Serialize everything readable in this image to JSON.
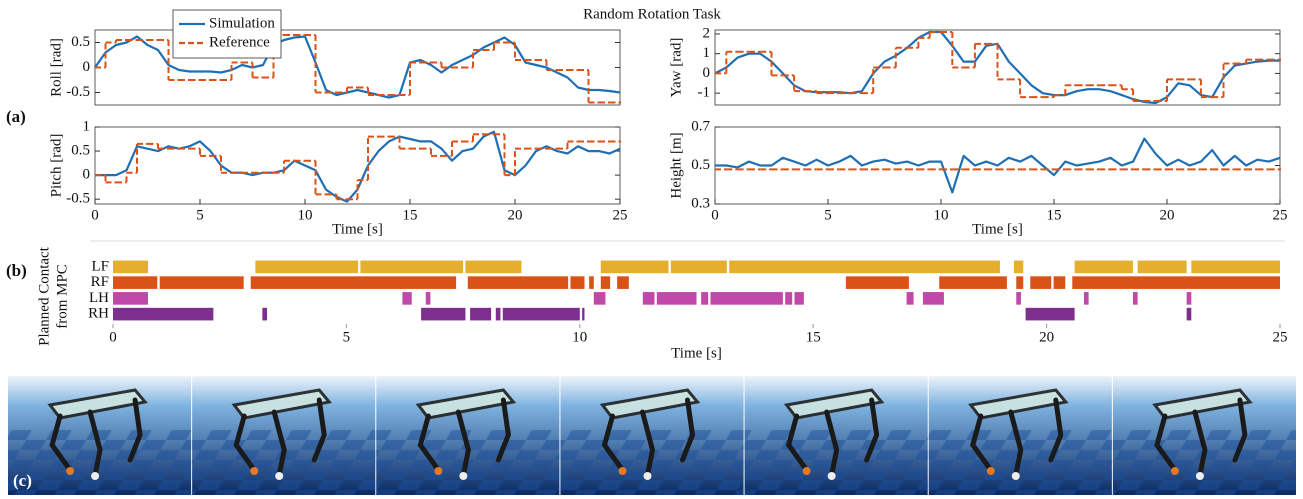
{
  "title": "Random Rotation Task",
  "panel_labels": [
    "(a)",
    "(b)",
    "(c)"
  ],
  "chart_data": [
    {
      "type": "line",
      "ylabel": "Roll [rad]",
      "xlim": [
        0,
        25
      ],
      "ylim": [
        -0.75,
        0.75
      ],
      "yticks": [
        -0.5,
        0,
        0.5
      ],
      "legend": "upper left",
      "x": [
        0,
        0.5,
        1,
        1.5,
        2,
        2.5,
        3,
        3.5,
        4,
        4.5,
        5,
        5.5,
        6,
        6.5,
        7,
        7.5,
        8,
        8.5,
        9,
        9.5,
        10,
        10.5,
        11,
        11.5,
        12,
        12.5,
        13,
        13.5,
        14,
        14.5,
        15,
        15.5,
        16,
        16.5,
        17,
        17.5,
        18,
        18.5,
        19,
        19.5,
        20,
        20.5,
        21,
        21.5,
        22,
        22.5,
        23,
        23.5,
        24,
        24.5,
        25
      ],
      "series": [
        {
          "name": "Simulation",
          "color": "#1f6fb5",
          "drawstyle": "line",
          "values": [
            0,
            0.3,
            0.45,
            0.5,
            0.62,
            0.45,
            0.35,
            0.05,
            -0.05,
            -0.08,
            -0.08,
            -0.08,
            -0.1,
            -0.05,
            0.05,
            0,
            0.05,
            0.45,
            0.55,
            0.6,
            0.62,
            0.1,
            -0.45,
            -0.55,
            -0.5,
            -0.45,
            -0.5,
            -0.55,
            -0.6,
            -0.55,
            0.1,
            0.15,
            0.05,
            -0.1,
            0.05,
            0.15,
            0.25,
            0.4,
            0.5,
            0.6,
            0.45,
            0.1,
            0.05,
            0,
            -0.1,
            -0.2,
            -0.4,
            -0.45,
            -0.45,
            -0.47,
            -0.5
          ]
        },
        {
          "name": "Reference",
          "color": "#d95319",
          "drawstyle": "steps-post",
          "values": [
            0,
            0.5,
            0.55,
            0.55,
            0.55,
            0.55,
            0.55,
            -0.25,
            -0.25,
            -0.25,
            -0.25,
            -0.25,
            -0.25,
            0.1,
            0.1,
            -0.2,
            -0.2,
            0.65,
            0.65,
            0.65,
            0.65,
            -0.5,
            -0.5,
            -0.5,
            -0.4,
            -0.4,
            -0.55,
            -0.55,
            -0.55,
            -0.55,
            0.1,
            0.1,
            0.1,
            0,
            0,
            0,
            0.35,
            0.35,
            0.5,
            0.5,
            0.15,
            0.15,
            0.15,
            -0.05,
            -0.05,
            -0.05,
            -0.05,
            -0.7,
            -0.7,
            -0.7,
            -0.7
          ]
        }
      ]
    },
    {
      "type": "line",
      "ylabel": "Yaw [rad]",
      "xlim": [
        0,
        25
      ],
      "ylim": [
        -1.6,
        2.2
      ],
      "yticks": [
        -1,
        0,
        1,
        2
      ],
      "x": [
        0,
        0.5,
        1,
        1.5,
        2,
        2.5,
        3,
        3.5,
        4,
        4.5,
        5,
        5.5,
        6,
        6.5,
        7,
        7.5,
        8,
        8.5,
        9,
        9.5,
        10,
        10.5,
        11,
        11.5,
        12,
        12.5,
        13,
        13.5,
        14,
        14.5,
        15,
        15.5,
        16,
        16.5,
        17,
        17.5,
        18,
        18.5,
        19,
        19.5,
        20,
        20.5,
        21,
        21.5,
        22,
        22.5,
        23,
        23.5,
        24,
        24.5,
        25
      ],
      "series": [
        {
          "color": "#1f6fb5",
          "drawstyle": "line",
          "values": [
            0,
            0.3,
            0.8,
            1.0,
            1.0,
            0.6,
            0,
            -0.6,
            -0.9,
            -0.95,
            -0.95,
            -0.95,
            -1.0,
            -0.9,
            0,
            0.6,
            0.9,
            1.3,
            1.8,
            2.1,
            2.1,
            1.4,
            0.6,
            0.6,
            1.4,
            1.5,
            0.6,
            0,
            -0.6,
            -1.0,
            -1.1,
            -1.1,
            -0.9,
            -0.8,
            -0.8,
            -0.9,
            -1.1,
            -1.3,
            -1.45,
            -1.5,
            -1.2,
            -0.5,
            -0.6,
            -1.1,
            -1.2,
            -0.2,
            0.4,
            0.5,
            0.6,
            0.65,
            0.65
          ]
        },
        {
          "color": "#d95319",
          "drawstyle": "steps-post",
          "values": [
            0,
            1.1,
            1.1,
            1.1,
            1.1,
            -0.1,
            -0.1,
            -0.9,
            -0.9,
            -1.0,
            -1.0,
            -1.0,
            -1.0,
            -1.0,
            0.3,
            0.3,
            1.3,
            1.3,
            1.8,
            2.1,
            2.1,
            0.3,
            0.3,
            1.5,
            1.5,
            -0.3,
            -0.3,
            -1.2,
            -1.2,
            -1.2,
            -1.1,
            -0.6,
            -0.6,
            -0.6,
            -0.6,
            -0.6,
            -0.8,
            -1.4,
            -1.4,
            -1.4,
            -0.3,
            -0.3,
            -0.3,
            -1.2,
            -1.2,
            0.5,
            0.5,
            0.7,
            0.7,
            0.7,
            0.7
          ]
        }
      ]
    },
    {
      "type": "line",
      "ylabel": "Pitch [rad]",
      "xlabel": "Time [s]",
      "xlim": [
        0,
        25
      ],
      "ylim": [
        -0.6,
        1
      ],
      "xticks": [
        0,
        5,
        10,
        15,
        20,
        25
      ],
      "yticks": [
        -0.5,
        0,
        0.5,
        1
      ],
      "x": [
        0,
        0.5,
        1,
        1.5,
        2,
        2.5,
        3,
        3.5,
        4,
        4.5,
        5,
        5.5,
        6,
        6.5,
        7,
        7.5,
        8,
        8.5,
        9,
        9.5,
        10,
        10.5,
        11,
        11.5,
        12,
        12.5,
        13,
        13.5,
        14,
        14.5,
        15,
        15.5,
        16,
        16.5,
        17,
        17.5,
        18,
        18.5,
        19,
        19.5,
        20,
        20.5,
        21,
        21.5,
        22,
        22.5,
        23,
        23.5,
        24,
        24.5,
        25
      ],
      "series": [
        {
          "color": "#1f6fb5",
          "drawstyle": "line",
          "values": [
            0,
            0,
            0,
            0.1,
            0.6,
            0.55,
            0.5,
            0.6,
            0.55,
            0.6,
            0.7,
            0.5,
            0.2,
            0.05,
            0.05,
            0,
            0.05,
            0.05,
            0.1,
            0.3,
            0.2,
            0.1,
            -0.3,
            -0.45,
            -0.55,
            -0.3,
            0.2,
            0.5,
            0.7,
            0.8,
            0.75,
            0.7,
            0.7,
            0.55,
            0.3,
            0.5,
            0.55,
            0.8,
            0.9,
            0.1,
            0,
            0.2,
            0.5,
            0.6,
            0.5,
            0.45,
            0.6,
            0.5,
            0.5,
            0.45,
            0.55
          ]
        },
        {
          "color": "#d95319",
          "drawstyle": "steps-post",
          "values": [
            0,
            -0.15,
            -0.15,
            0.05,
            0.65,
            0.65,
            0.55,
            0.55,
            0.55,
            0.55,
            0.4,
            0.4,
            0.05,
            0.05,
            0.05,
            0.05,
            0.05,
            0.05,
            0.3,
            0.3,
            0.3,
            -0.4,
            -0.4,
            -0.5,
            -0.5,
            -0.1,
            0.8,
            0.8,
            0.8,
            0.55,
            0.55,
            0.55,
            0.4,
            0.4,
            0.7,
            0.7,
            0.85,
            0.85,
            0.85,
            0,
            0.55,
            0.55,
            0.55,
            0.55,
            0.55,
            0.7,
            0.7,
            0.7,
            0.7,
            0.7,
            0.7
          ]
        }
      ]
    },
    {
      "type": "line",
      "ylabel": "Height [m]",
      "xlabel": "Time [s]",
      "xlim": [
        0,
        25
      ],
      "ylim": [
        0.3,
        0.7
      ],
      "xticks": [
        0,
        5,
        10,
        15,
        20,
        25
      ],
      "yticks": [
        0.3,
        0.5,
        0.7
      ],
      "x": [
        0,
        0.5,
        1,
        1.5,
        2,
        2.5,
        3,
        3.5,
        4,
        4.5,
        5,
        5.5,
        6,
        6.5,
        7,
        7.5,
        8,
        8.5,
        9,
        9.5,
        10,
        10.5,
        11,
        11.5,
        12,
        12.5,
        13,
        13.5,
        14,
        14.5,
        15,
        15.5,
        16,
        16.5,
        17,
        17.5,
        18,
        18.5,
        19,
        19.5,
        20,
        20.5,
        21,
        21.5,
        22,
        22.5,
        23,
        23.5,
        24,
        24.5,
        25
      ],
      "series": [
        {
          "color": "#1f6fb5",
          "drawstyle": "line",
          "values": [
            0.5,
            0.5,
            0.49,
            0.52,
            0.5,
            0.5,
            0.54,
            0.52,
            0.5,
            0.53,
            0.5,
            0.52,
            0.55,
            0.5,
            0.52,
            0.53,
            0.51,
            0.52,
            0.5,
            0.52,
            0.52,
            0.36,
            0.55,
            0.5,
            0.52,
            0.5,
            0.54,
            0.52,
            0.55,
            0.5,
            0.45,
            0.52,
            0.5,
            0.51,
            0.52,
            0.54,
            0.5,
            0.52,
            0.64,
            0.56,
            0.5,
            0.53,
            0.5,
            0.52,
            0.58,
            0.5,
            0.55,
            0.5,
            0.53,
            0.52,
            0.54
          ]
        },
        {
          "color": "#d95319",
          "drawstyle": "steps-post",
          "values": [
            0.48,
            0.48,
            0.48,
            0.48,
            0.48,
            0.48,
            0.48,
            0.48,
            0.48,
            0.48,
            0.48,
            0.48,
            0.48,
            0.48,
            0.48,
            0.48,
            0.48,
            0.48,
            0.48,
            0.48,
            0.48,
            0.48,
            0.48,
            0.48,
            0.48,
            0.48,
            0.48,
            0.48,
            0.48,
            0.48,
            0.48,
            0.48,
            0.48,
            0.48,
            0.48,
            0.48,
            0.48,
            0.48,
            0.48,
            0.48,
            0.48,
            0.48,
            0.48,
            0.48,
            0.48,
            0.48,
            0.48,
            0.48,
            0.48,
            0.48,
            0.48
          ]
        }
      ]
    },
    {
      "type": "contact",
      "ylabel": [
        "Planned Contact",
        "from MPC"
      ],
      "xlabel": "Time [s]",
      "xlim": [
        0,
        25
      ],
      "xticks": [
        0,
        5,
        10,
        15,
        20,
        25
      ],
      "categories": [
        "LF",
        "RF",
        "LH",
        "RH"
      ],
      "colors": [
        "#e6ae2e",
        "#d95319",
        "#c048a8",
        "#7e2f8e"
      ],
      "intervals": [
        [
          [
            0,
            0.75
          ],
          [
            3.05,
            5.25
          ],
          [
            5.3,
            7.5
          ],
          [
            7.55,
            8.75
          ],
          [
            10.45,
            11.9
          ],
          [
            11.95,
            13.15
          ],
          [
            13.2,
            19.0
          ],
          [
            19.3,
            19.5
          ],
          [
            20.6,
            21.85
          ],
          [
            21.95,
            23.0
          ],
          [
            23.1,
            25
          ]
        ],
        [
          [
            0,
            0.95
          ],
          [
            1.0,
            2.8
          ],
          [
            2.95,
            7.35
          ],
          [
            7.6,
            9.75
          ],
          [
            9.8,
            10.1
          ],
          [
            10.2,
            10.3
          ],
          [
            10.45,
            10.65
          ],
          [
            10.8,
            11.05
          ],
          [
            15.7,
            17.05
          ],
          [
            17.7,
            19.15
          ],
          [
            19.35,
            19.5
          ],
          [
            19.65,
            20.1
          ],
          [
            20.15,
            20.4
          ],
          [
            20.55,
            25
          ]
        ],
        [
          [
            0,
            0.75
          ],
          [
            6.2,
            6.4
          ],
          [
            6.7,
            6.8
          ],
          [
            10.3,
            10.55
          ],
          [
            11.35,
            11.6
          ],
          [
            11.65,
            12.5
          ],
          [
            12.6,
            12.75
          ],
          [
            12.8,
            14.35
          ],
          [
            14.4,
            14.55
          ],
          [
            14.6,
            14.8
          ],
          [
            17.0,
            17.15
          ],
          [
            17.35,
            17.8
          ],
          [
            19.35,
            19.45
          ],
          [
            20.8,
            20.9
          ],
          [
            21.85,
            21.95
          ],
          [
            23.0,
            23.1
          ]
        ],
        [
          [
            0,
            2.15
          ],
          [
            3.2,
            3.3
          ],
          [
            6.6,
            7.55
          ],
          [
            7.65,
            8.1
          ],
          [
            8.2,
            8.3
          ],
          [
            8.35,
            10.0
          ],
          [
            10.05,
            10.1
          ],
          [
            19.55,
            20.6
          ],
          [
            23.0,
            23.1
          ]
        ]
      ]
    }
  ]
}
